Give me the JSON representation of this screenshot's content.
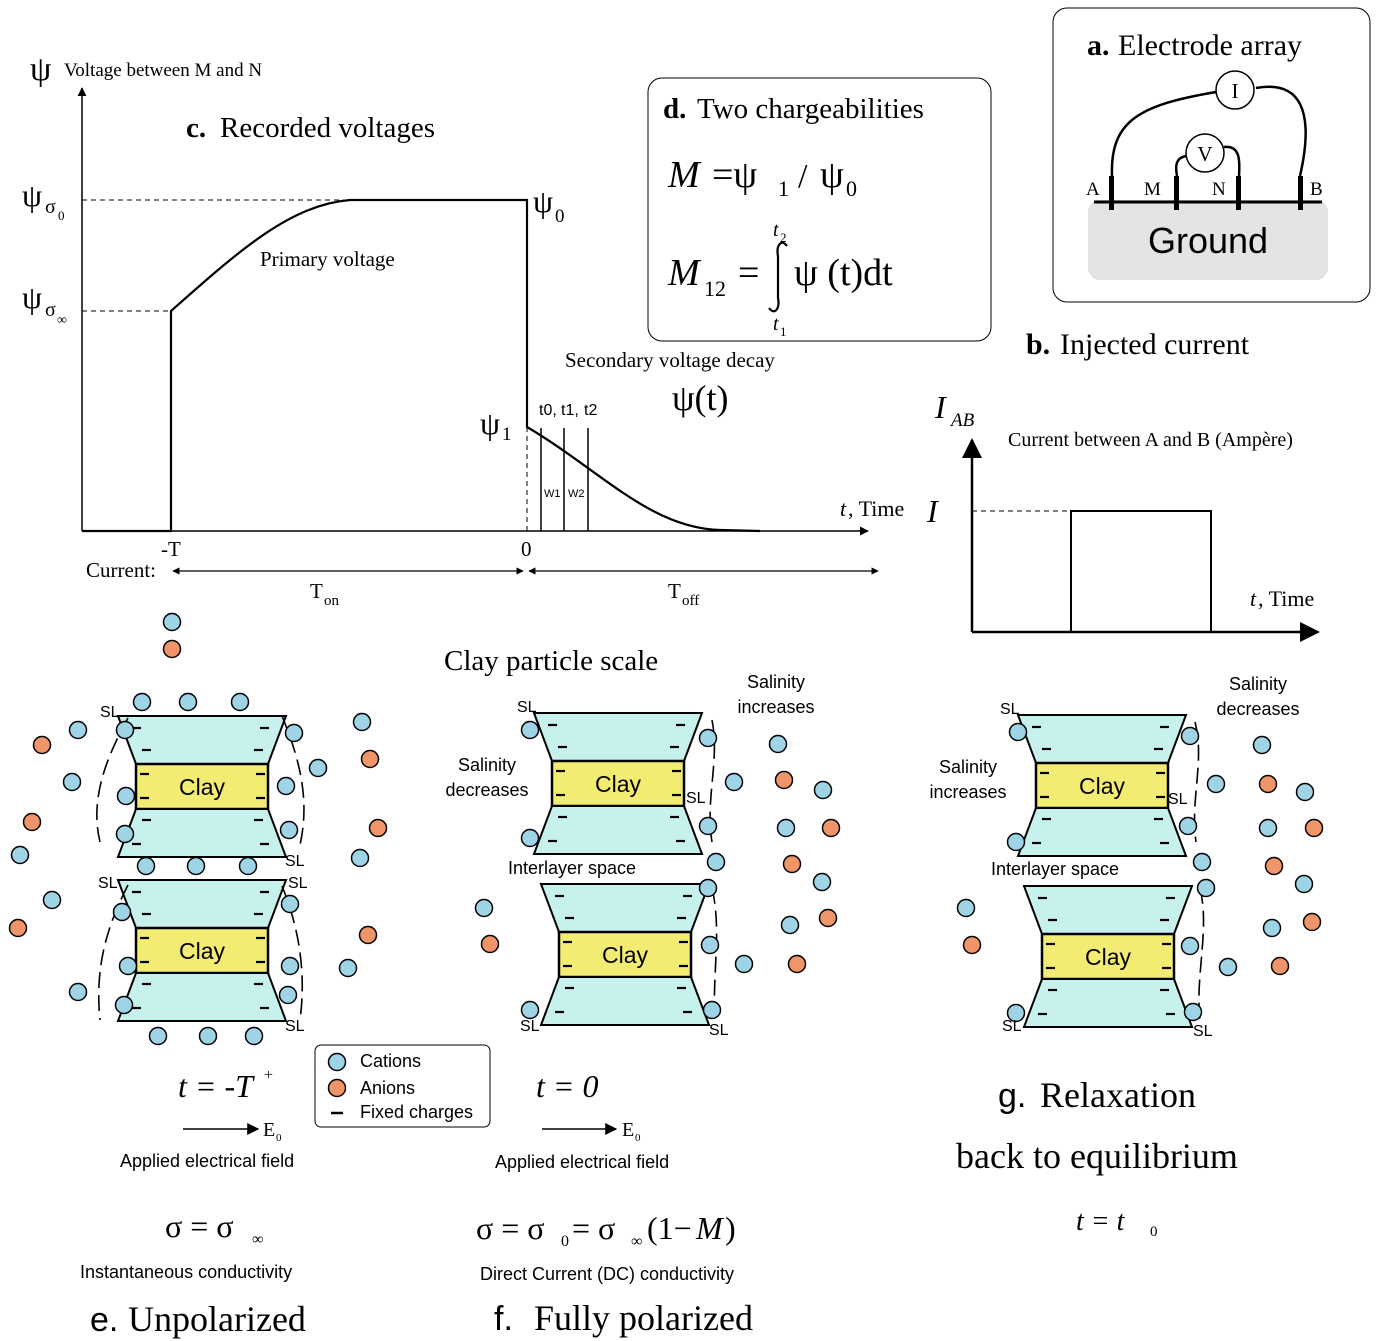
{
  "panel_c": {
    "psi_symbol": "ψ",
    "y_axis_label": "Voltage between M and N",
    "title_letter": "c.",
    "title": "Recorded voltages",
    "psi_sigma0": "σ",
    "psi_sigma0_sub": "0",
    "psi_sigma_inf": "σ",
    "psi_sigma_inf_sub": "∞",
    "psi0_label": "0",
    "psi1_label": "1",
    "primary_voltage": "Primary voltage",
    "secondary_decay": "Secondary voltage decay",
    "psi_t": "ψ(t)",
    "gates": "t0, t1, t2",
    "gate_t0": "t0,",
    "gate_t1": "t1,",
    "gate_t2": "t2",
    "w1": "W1",
    "w2": "W2",
    "x_axis_t": "t",
    "x_axis_label": ", Time",
    "tick_neg_T": "-T",
    "tick_zero": "0",
    "current_label": "Current:",
    "t_on": "T",
    "t_on_sub": "on",
    "t_off": "T",
    "t_off_sub": "off"
  },
  "panel_d": {
    "title_letter": "d.",
    "title": "Two chargeabilities",
    "eq1_lhs": "M",
    "eq1_rhs_a": "=ψ",
    "eq1_sub1": "1",
    "eq1_slash": "/",
    "eq1_psi": "ψ",
    "eq1_sub0": "0",
    "eq2_lhs": "M",
    "eq2_sub": "12",
    "eq2_eq": "=",
    "eq2_integrand": "ψ (t)dt",
    "eq2_upper": "t",
    "eq2_upper_sub": "2",
    "eq2_lower": "t",
    "eq2_lower_sub": "1"
  },
  "panel_a": {
    "title_letter": "a.",
    "title": "Electrode array",
    "meter_i": "I",
    "meter_v": "V",
    "electrode_a": "A",
    "electrode_m": "M",
    "electrode_n": "N",
    "electrode_b": "B",
    "ground": "Ground"
  },
  "panel_b": {
    "title_letter": "b.",
    "title": "Injected current",
    "y_symbol": "I",
    "y_symbol_sub": "AB",
    "y_axis_label": "Current between A and B (Ampère)",
    "level_label": "I",
    "x_axis_t": "t",
    "x_axis_label": ", Time"
  },
  "clay_scale_title": "Clay particle scale",
  "clay_word": "Clay",
  "sl_label": "SL",
  "interlayer_space": "Interlayer space",
  "panel_e": {
    "time_eq": "t = -T",
    "time_sup": "+",
    "field_label": "E",
    "field_sub": "0",
    "applied_field": "Applied electrical field",
    "sigma_eq": "σ = σ",
    "sigma_sub": "∞",
    "conductivity": "Instantaneous conductivity",
    "title_letter": "e.",
    "title": "Unpolarized"
  },
  "panel_f": {
    "salinity_left_1": "Salinity",
    "salinity_left_2": "decreases",
    "salinity_right_1": "Salinity",
    "salinity_right_2": "increases",
    "time_eq": "t = 0",
    "field_label": "E",
    "field_sub": "0",
    "applied_field": "Applied electrical field",
    "sigma_eq_a": "σ = σ",
    "sigma_sub0": "0",
    "sigma_eq_b": " = σ",
    "sigma_subinf": "∞",
    "sigma_eq_c": "(1−",
    "sigma_M": "M",
    "sigma_eq_d": ")",
    "conductivity": "Direct Current (DC) conductivity",
    "title_letter": "f.",
    "title": "Fully polarized"
  },
  "panel_g": {
    "salinity_left_1": "Salinity",
    "salinity_left_2": "increases",
    "salinity_right_1": "Salinity",
    "salinity_right_2": "decreases",
    "title_letter": "g.",
    "title_line1": "Relaxation",
    "title_line2": "back to equilibrium",
    "time_eq": "t = t",
    "time_sub": "0"
  },
  "legend": {
    "cations": "Cations",
    "anions": "Anions",
    "fixed": "Fixed charges"
  },
  "colors": {
    "cation": "#9fd3e6",
    "anion": "#f0956a",
    "clay": "#f3ec72",
    "water_layer": "#c7f1ec",
    "ground": "#e4e4e4"
  }
}
